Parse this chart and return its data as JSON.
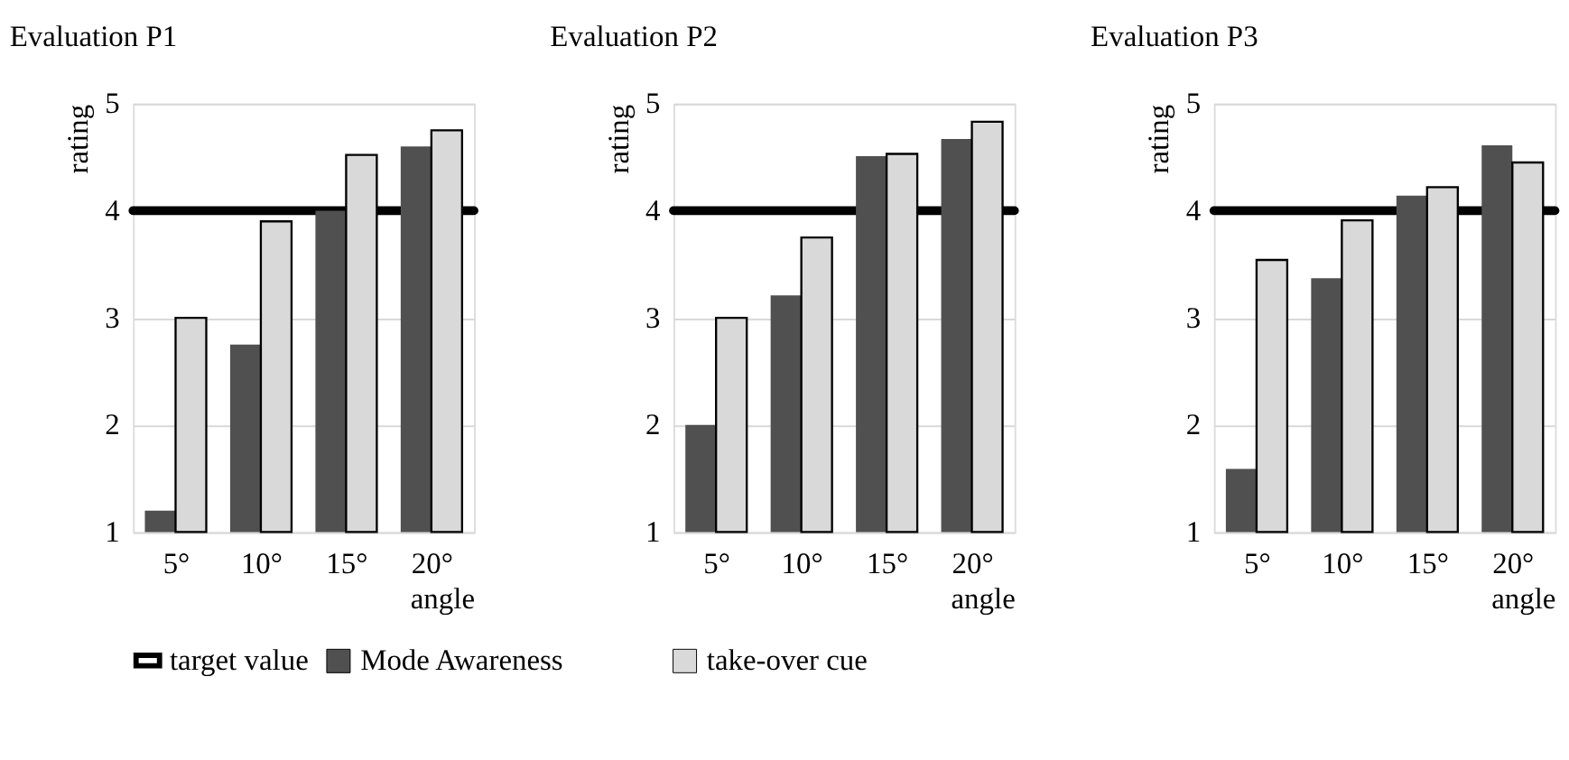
{
  "chart_data": [
    {
      "type": "bar",
      "title": "Evaluation P1",
      "xlabel": "angle",
      "ylabel": "rating",
      "categories": [
        "5°",
        "10°",
        "15°",
        "20°"
      ],
      "series": [
        {
          "name": "Mode Awareness",
          "color": "#505050",
          "values": [
            1.2,
            2.75,
            4.0,
            4.6
          ]
        },
        {
          "name": "take-over cue",
          "color": "#d9d9d9",
          "values": [
            3.0,
            3.9,
            4.52,
            4.75
          ]
        }
      ],
      "ylim": [
        1,
        5
      ],
      "yticks": [
        1,
        2,
        3,
        4,
        5
      ],
      "grid": "y",
      "legend": "bottom",
      "ref_lines": [
        {
          "axis": "y",
          "value": 4,
          "label": "target value",
          "color": "#000000"
        }
      ]
    },
    {
      "type": "bar",
      "title": "Evaluation P2",
      "xlabel": "angle",
      "ylabel": "rating",
      "categories": [
        "5°",
        "10°",
        "15°",
        "20°"
      ],
      "series": [
        {
          "name": "Mode Awareness",
          "color": "#505050",
          "values": [
            2.0,
            3.21,
            4.51,
            4.67
          ]
        },
        {
          "name": "take-over cue",
          "color": "#d9d9d9",
          "values": [
            3.0,
            3.75,
            4.53,
            4.83
          ]
        }
      ],
      "ylim": [
        1,
        5
      ],
      "yticks": [
        1,
        2,
        3,
        4,
        5
      ],
      "grid": "y",
      "legend": "bottom",
      "ref_lines": [
        {
          "axis": "y",
          "value": 4,
          "color": "#000000"
        }
      ]
    },
    {
      "type": "bar",
      "title": "Evaluation P3",
      "xlabel": "angle",
      "ylabel": "rating",
      "categories": [
        "5°",
        "10°",
        "15°",
        "20°"
      ],
      "series": [
        {
          "name": "Mode Awareness",
          "color": "#505050",
          "values": [
            1.59,
            3.37,
            4.14,
            4.61
          ]
        },
        {
          "name": "take-over cue",
          "color": "#d9d9d9",
          "values": [
            3.54,
            3.91,
            4.22,
            4.45
          ]
        }
      ],
      "ylim": [
        1,
        5
      ],
      "yticks": [
        1,
        2,
        3,
        4,
        5
      ],
      "grid": "y",
      "legend": "bottom",
      "ref_lines": [
        {
          "axis": "y",
          "value": 4,
          "color": "#000000"
        }
      ]
    }
  ]
}
